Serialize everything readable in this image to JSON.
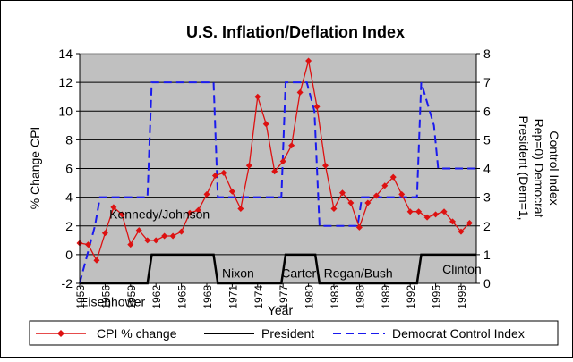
{
  "chart_data": {
    "type": "line",
    "title": "U.S. Inflation/Deflation Index",
    "xlabel": "Year",
    "ylabel": "% Change CPI",
    "y2label_line1": "President (Dem=1,",
    "y2label_line2": "Rep=0) Democrat",
    "y2label_line3": "Control Index",
    "xlim": [
      1953,
      1999.8
    ],
    "ylim": [
      -2,
      14
    ],
    "y2lim": [
      0,
      8
    ],
    "x_ticks": [
      1953,
      1956,
      1959,
      1962,
      1965,
      1968,
      1971,
      1974,
      1977,
      1980,
      1983,
      1986,
      1989,
      1992,
      1995,
      1998
    ],
    "y_ticks": [
      -2,
      0,
      2,
      4,
      6,
      8,
      10,
      12,
      14
    ],
    "y2_ticks": [
      0,
      1,
      2,
      3,
      4,
      5,
      6,
      7,
      8
    ],
    "grid": true,
    "legend_position": "bottom",
    "series": [
      {
        "name": "CPI % change",
        "axis": "left",
        "color": "#dd1111",
        "points": [
          [
            1953,
            0.8
          ],
          [
            1954,
            0.7
          ],
          [
            1955,
            -0.4
          ],
          [
            1956,
            1.5
          ],
          [
            1957,
            3.3
          ],
          [
            1958,
            2.8
          ],
          [
            1959,
            0.7
          ],
          [
            1960,
            1.7
          ],
          [
            1961,
            1.0
          ],
          [
            1962,
            1.0
          ],
          [
            1963,
            1.3
          ],
          [
            1964,
            1.3
          ],
          [
            1965,
            1.6
          ],
          [
            1966,
            2.9
          ],
          [
            1967,
            3.1
          ],
          [
            1968,
            4.2
          ],
          [
            1969,
            5.5
          ],
          [
            1970,
            5.7
          ],
          [
            1971,
            4.4
          ],
          [
            1972,
            3.2
          ],
          [
            1973,
            6.2
          ],
          [
            1974,
            11.0
          ],
          [
            1975,
            9.1
          ],
          [
            1976,
            5.8
          ],
          [
            1977,
            6.5
          ],
          [
            1978,
            7.6
          ],
          [
            1979,
            11.3
          ],
          [
            1980,
            13.5
          ],
          [
            1981,
            10.3
          ],
          [
            1982,
            6.2
          ],
          [
            1983,
            3.2
          ],
          [
            1984,
            4.3
          ],
          [
            1985,
            3.6
          ],
          [
            1986,
            1.9
          ],
          [
            1987,
            3.6
          ],
          [
            1988,
            4.1
          ],
          [
            1989,
            4.8
          ],
          [
            1990,
            5.4
          ],
          [
            1991,
            4.2
          ],
          [
            1992,
            3.0
          ],
          [
            1993,
            3.0
          ],
          [
            1994,
            2.6
          ],
          [
            1995,
            2.8
          ],
          [
            1996,
            3.0
          ],
          [
            1997,
            2.3
          ],
          [
            1998,
            1.6
          ],
          [
            1999,
            2.2
          ]
        ]
      },
      {
        "name": "President",
        "axis": "right",
        "color": "#000000",
        "points": [
          [
            1953,
            0
          ],
          [
            1961,
            0
          ],
          [
            1961.5,
            1
          ],
          [
            1968.8,
            1
          ],
          [
            1969.3,
            0
          ],
          [
            1976.8,
            0
          ],
          [
            1977.3,
            1
          ],
          [
            1980.8,
            1
          ],
          [
            1981.3,
            0
          ],
          [
            1992.8,
            0
          ],
          [
            1993.3,
            1
          ],
          [
            1999.8,
            1
          ]
        ]
      },
      {
        "name": "Democrat Control Index",
        "axis": "right",
        "color": "#1a1aee",
        "points": [
          [
            1953,
            0
          ],
          [
            1954.8,
            2
          ],
          [
            1955.4,
            3
          ],
          [
            1961,
            3
          ],
          [
            1961.5,
            7
          ],
          [
            1968.8,
            7
          ],
          [
            1969.3,
            3
          ],
          [
            1976.8,
            3
          ],
          [
            1977.3,
            7
          ],
          [
            1979.8,
            7
          ],
          [
            1980.7,
            6
          ],
          [
            1981.3,
            2
          ],
          [
            1985.8,
            2
          ],
          [
            1986.3,
            3
          ],
          [
            1992.8,
            3
          ],
          [
            1993.3,
            7
          ],
          [
            1994.8,
            5.5
          ],
          [
            1995.3,
            4
          ],
          [
            1999.8,
            4
          ]
        ]
      }
    ],
    "annotations": [
      {
        "text": "Eisenhower",
        "x": 1953,
        "y2": -0.8
      },
      {
        "text": "Kennedy/Johnson",
        "x": 1956.5,
        "y2": 2.25
      },
      {
        "text": "Nixon",
        "x": 1969.8,
        "y2": 0.2
      },
      {
        "text": "Carter",
        "x": 1976.8,
        "y2": 0.2
      },
      {
        "text": "Regan/Bush",
        "x": 1981.8,
        "y2": 0.2
      },
      {
        "text": "Clinton",
        "x": 1995.8,
        "y2": 0.35
      }
    ]
  }
}
